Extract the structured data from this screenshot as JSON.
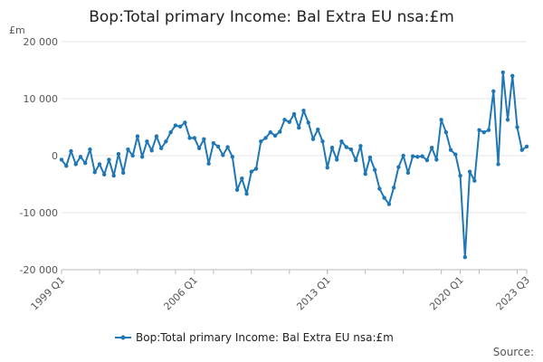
{
  "chart_data": {
    "type": "line",
    "title": "Bop:Total primary Income: Bal Extra EU nsa:£m",
    "unit_label": "£m",
    "xlabel": "",
    "ylabel": "",
    "ylim": [
      -20000,
      20000
    ],
    "y_ticks": [
      -20000,
      -10000,
      0,
      10000,
      20000
    ],
    "y_tick_labels": [
      "-20 000",
      "-10 000",
      "0",
      "10 000",
      "20 000"
    ],
    "x_tick_labels": [
      "1999 Q1",
      "2006 Q1",
      "2013 Q1",
      "2020 Q1",
      "2023 Q3"
    ],
    "x_tick_positions": [
      "1999 Q1",
      "2006 Q1",
      "2013 Q1",
      "2020 Q1",
      "2023 Q3"
    ],
    "grid": true,
    "legend_position": "bottom",
    "source_text": "Source:",
    "series": [
      {
        "name": "Bop:Total primary Income: Bal Extra EU nsa:£m",
        "color": "#1f77b4",
        "x": [
          "1999 Q1",
          "1999 Q2",
          "1999 Q3",
          "1999 Q4",
          "2000 Q1",
          "2000 Q2",
          "2000 Q3",
          "2000 Q4",
          "2001 Q1",
          "2001 Q2",
          "2001 Q3",
          "2001 Q4",
          "2002 Q1",
          "2002 Q2",
          "2002 Q3",
          "2002 Q4",
          "2003 Q1",
          "2003 Q2",
          "2003 Q3",
          "2003 Q4",
          "2004 Q1",
          "2004 Q2",
          "2004 Q3",
          "2004 Q4",
          "2005 Q1",
          "2005 Q2",
          "2005 Q3",
          "2005 Q4",
          "2006 Q1",
          "2006 Q2",
          "2006 Q3",
          "2006 Q4",
          "2007 Q1",
          "2007 Q2",
          "2007 Q3",
          "2007 Q4",
          "2008 Q1",
          "2008 Q2",
          "2008 Q3",
          "2008 Q4",
          "2009 Q1",
          "2009 Q2",
          "2009 Q3",
          "2009 Q4",
          "2010 Q1",
          "2010 Q2",
          "2010 Q3",
          "2010 Q4",
          "2011 Q1",
          "2011 Q2",
          "2011 Q3",
          "2011 Q4",
          "2012 Q1",
          "2012 Q2",
          "2012 Q3",
          "2012 Q4",
          "2013 Q1",
          "2013 Q2",
          "2013 Q3",
          "2013 Q4",
          "2014 Q1",
          "2014 Q2",
          "2014 Q3",
          "2014 Q4",
          "2015 Q1",
          "2015 Q2",
          "2015 Q3",
          "2015 Q4",
          "2016 Q1",
          "2016 Q2",
          "2016 Q3",
          "2016 Q4",
          "2017 Q1",
          "2017 Q2",
          "2017 Q3",
          "2017 Q4",
          "2018 Q1",
          "2018 Q2",
          "2018 Q3",
          "2018 Q4",
          "2019 Q1",
          "2019 Q2",
          "2019 Q3",
          "2019 Q4",
          "2020 Q1",
          "2020 Q2",
          "2020 Q3",
          "2020 Q4",
          "2021 Q1",
          "2021 Q2",
          "2021 Q3",
          "2021 Q4",
          "2022 Q1",
          "2022 Q2",
          "2022 Q3",
          "2022 Q4",
          "2023 Q1",
          "2023 Q2",
          "2023 Q3"
        ],
        "values": [
          -700,
          -1800,
          800,
          -1500,
          -200,
          -1300,
          1100,
          -2900,
          -1500,
          -3300,
          -700,
          -3500,
          300,
          -3000,
          1100,
          0,
          3400,
          -200,
          2500,
          900,
          3400,
          1300,
          2500,
          4100,
          5300,
          5100,
          5800,
          3100,
          3100,
          1300,
          2900,
          -1400,
          2200,
          1600,
          100,
          1500,
          -200,
          -6000,
          -4000,
          -6700,
          -2800,
          -2300,
          2500,
          3100,
          4100,
          3500,
          4200,
          6300,
          5900,
          7300,
          4900,
          7900,
          5800,
          2900,
          4600,
          2500,
          -2100,
          1400,
          -700,
          2500,
          1500,
          1100,
          -800,
          1700,
          -3200,
          -300,
          -2500,
          -5800,
          -7400,
          -8500,
          -5600,
          -2000,
          0,
          -3000,
          -100,
          -200,
          -100,
          -800,
          1400,
          -700,
          6300,
          4100,
          1000,
          200,
          -3500,
          -17800,
          -2800,
          -4400,
          4500,
          4100,
          4500,
          11300,
          -1500,
          14600,
          6300,
          14000,
          5000,
          1000,
          1600
        ]
      }
    ]
  }
}
